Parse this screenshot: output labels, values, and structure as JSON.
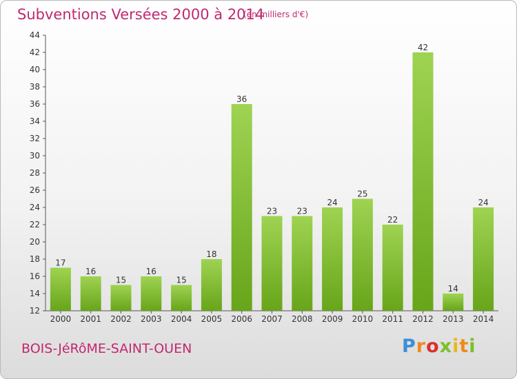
{
  "header": {
    "title": "Subventions Versées 2000 à 2014",
    "units": "(en milliers d'€)"
  },
  "footer": {
    "commune": "BOIS-JéRôME-SAINT-OUEN",
    "logo": "Proxiti"
  },
  "colors": {
    "title": "#c0286f",
    "bar_light": "#9fd352",
    "bar_dark": "#67a51a",
    "axis": "#555555"
  },
  "chart_data": {
    "type": "bar",
    "title": "Subventions Versées 2000 à 2014",
    "xlabel": "",
    "ylabel": "",
    "categories": [
      "2000",
      "2001",
      "2002",
      "2003",
      "2004",
      "2005",
      "2006",
      "2007",
      "2008",
      "2009",
      "2010",
      "2011",
      "2012",
      "2013",
      "2014"
    ],
    "values": [
      17,
      16,
      15,
      16,
      15,
      18,
      36,
      23,
      23,
      24,
      25,
      22,
      42,
      14,
      24
    ],
    "value_labels": [
      "17",
      "16",
      "15",
      "16",
      "15",
      "18",
      "36",
      "23",
      "23",
      "24",
      "25",
      "22",
      "42",
      "14",
      "24"
    ],
    "y_ticks": [
      12,
      14,
      16,
      18,
      20,
      22,
      24,
      26,
      28,
      30,
      32,
      34,
      36,
      38,
      40,
      42,
      44
    ],
    "ylim": [
      12,
      44
    ],
    "grid": false,
    "legend": "none"
  }
}
